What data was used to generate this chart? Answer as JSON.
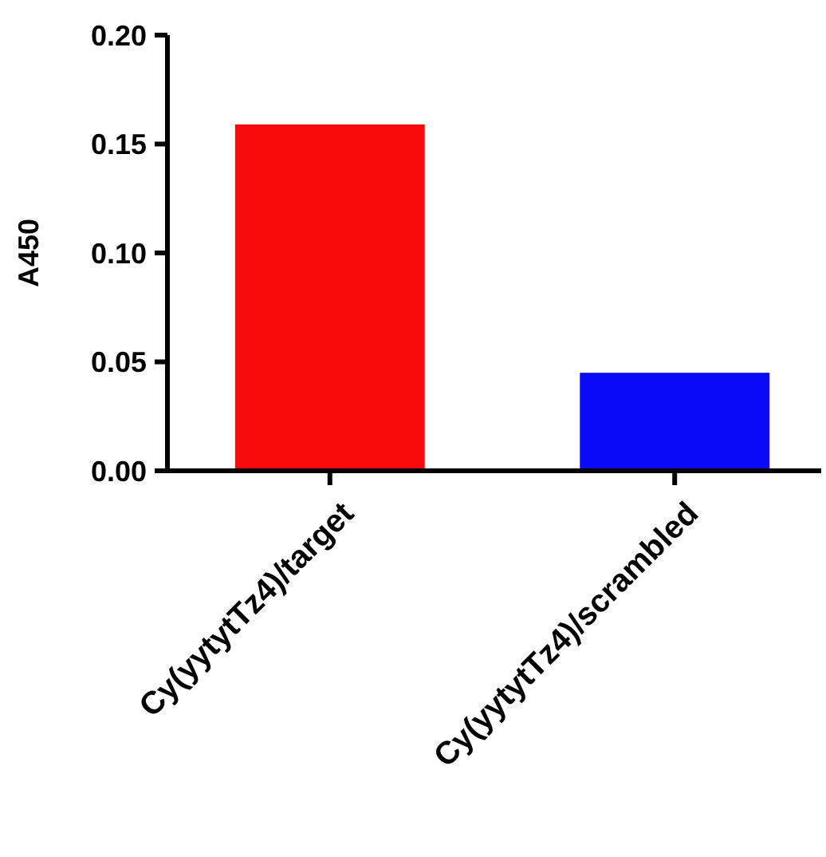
{
  "chart_data": {
    "type": "bar",
    "ylabel": "A450",
    "categories": [
      "Cy(yytytTz4)/target",
      "Cy(yytytTz4)/scrambled"
    ],
    "values": [
      0.159,
      0.045
    ],
    "colors": [
      "#f70a0a",
      "#0a0af7"
    ],
    "ylim": [
      0,
      0.2
    ],
    "yticks": [
      {
        "value": 0,
        "label": "0.00"
      },
      {
        "value": 0.05,
        "label": "0.05"
      },
      {
        "value": 0.1,
        "label": "0.10"
      },
      {
        "value": 0.15,
        "label": "0.15"
      },
      {
        "value": 0.2,
        "label": "0.20"
      }
    ],
    "grid": false
  }
}
